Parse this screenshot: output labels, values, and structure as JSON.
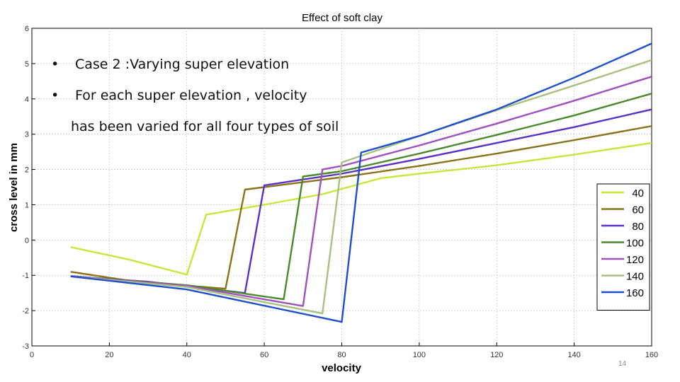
{
  "slide": {
    "bullets": [
      {
        "marker": "•",
        "text": "Case 2 :Varying super elevation"
      },
      {
        "marker": "•",
        "text": "For each super elevation , velocity"
      },
      {
        "marker": "",
        "text": "has been varied for all four types of soil"
      }
    ],
    "page_number": "14"
  },
  "chart_data": {
    "type": "line",
    "title": "Effect of soft clay",
    "xlabel": "velocity",
    "ylabel": "cross level in mm",
    "xlim": [
      0,
      160
    ],
    "ylim": [
      -3,
      6
    ],
    "xticks": [
      0,
      20,
      40,
      60,
      80,
      100,
      120,
      140,
      160
    ],
    "yticks": [
      -3,
      -2,
      -1,
      0,
      1,
      2,
      3,
      4,
      5,
      6
    ],
    "grid": true,
    "legend_position": "right",
    "series": [
      {
        "name": "40",
        "color": "#c8e63c",
        "x": [
          10,
          25,
          40,
          45,
          60,
          75,
          90,
          100,
          120,
          140,
          160
        ],
        "y": [
          -0.2,
          -0.55,
          -0.98,
          0.72,
          1.0,
          1.3,
          1.75,
          1.88,
          2.12,
          2.42,
          2.75
        ]
      },
      {
        "name": "60",
        "color": "#8a7318",
        "x": [
          10,
          25,
          50,
          55,
          80,
          100,
          120,
          140,
          160
        ],
        "y": [
          -0.9,
          -1.15,
          -1.38,
          1.43,
          1.78,
          2.1,
          2.45,
          2.83,
          3.23
        ]
      },
      {
        "name": "80",
        "color": "#5a30c8",
        "x": [
          10,
          30,
          55,
          60,
          80,
          100,
          120,
          140,
          160
        ],
        "y": [
          -1.03,
          -1.18,
          -1.5,
          1.55,
          1.88,
          2.3,
          2.75,
          3.2,
          3.7
        ]
      },
      {
        "name": "100",
        "color": "#4a8a2a",
        "x": [
          10,
          40,
          65,
          70,
          80,
          100,
          120,
          140,
          160
        ],
        "y": [
          -1.02,
          -1.28,
          -1.68,
          1.8,
          1.95,
          2.45,
          2.98,
          3.53,
          4.15
        ]
      },
      {
        "name": "120",
        "color": "#a050c0",
        "x": [
          10,
          40,
          70,
          75,
          80,
          100,
          120,
          140,
          160
        ],
        "y": [
          -1.02,
          -1.3,
          -1.87,
          2.0,
          2.1,
          2.68,
          3.3,
          3.95,
          4.63
        ]
      },
      {
        "name": "140",
        "color": "#a8c080",
        "x": [
          10,
          40,
          75,
          80,
          100,
          120,
          140,
          160
        ],
        "y": [
          -1.03,
          -1.33,
          -2.08,
          2.2,
          2.95,
          3.68,
          4.38,
          5.1
        ]
      },
      {
        "name": "160",
        "color": "#1e4fd0",
        "x": [
          10,
          40,
          80,
          85,
          100,
          120,
          140,
          160
        ],
        "y": [
          -1.03,
          -1.4,
          -2.32,
          2.48,
          2.95,
          3.7,
          4.6,
          5.57
        ]
      }
    ]
  }
}
